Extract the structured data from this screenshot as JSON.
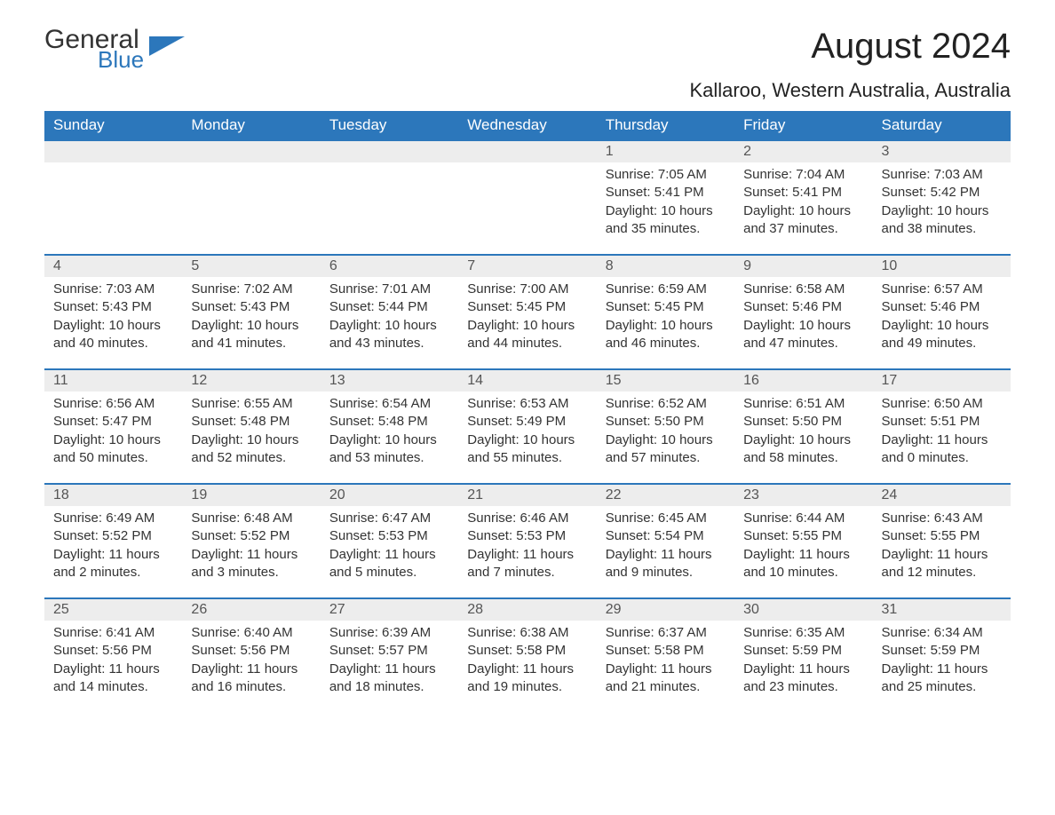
{
  "logo": {
    "text1": "General",
    "text2": "Blue",
    "shape_color": "#2c77bb"
  },
  "title": "August 2024",
  "location": "Kallaroo, Western Australia, Australia",
  "colors": {
    "header_bg": "#2c77bb",
    "header_text": "#ffffff",
    "daynum_bg": "#ededed",
    "border": "#2c77bb",
    "text": "#333333"
  },
  "weekdays": [
    "Sunday",
    "Monday",
    "Tuesday",
    "Wednesday",
    "Thursday",
    "Friday",
    "Saturday"
  ],
  "weeks": [
    [
      null,
      null,
      null,
      null,
      {
        "d": "1",
        "sr": "Sunrise: 7:05 AM",
        "ss": "Sunset: 5:41 PM",
        "dl1": "Daylight: 10 hours",
        "dl2": "and 35 minutes."
      },
      {
        "d": "2",
        "sr": "Sunrise: 7:04 AM",
        "ss": "Sunset: 5:41 PM",
        "dl1": "Daylight: 10 hours",
        "dl2": "and 37 minutes."
      },
      {
        "d": "3",
        "sr": "Sunrise: 7:03 AM",
        "ss": "Sunset: 5:42 PM",
        "dl1": "Daylight: 10 hours",
        "dl2": "and 38 minutes."
      }
    ],
    [
      {
        "d": "4",
        "sr": "Sunrise: 7:03 AM",
        "ss": "Sunset: 5:43 PM",
        "dl1": "Daylight: 10 hours",
        "dl2": "and 40 minutes."
      },
      {
        "d": "5",
        "sr": "Sunrise: 7:02 AM",
        "ss": "Sunset: 5:43 PM",
        "dl1": "Daylight: 10 hours",
        "dl2": "and 41 minutes."
      },
      {
        "d": "6",
        "sr": "Sunrise: 7:01 AM",
        "ss": "Sunset: 5:44 PM",
        "dl1": "Daylight: 10 hours",
        "dl2": "and 43 minutes."
      },
      {
        "d": "7",
        "sr": "Sunrise: 7:00 AM",
        "ss": "Sunset: 5:45 PM",
        "dl1": "Daylight: 10 hours",
        "dl2": "and 44 minutes."
      },
      {
        "d": "8",
        "sr": "Sunrise: 6:59 AM",
        "ss": "Sunset: 5:45 PM",
        "dl1": "Daylight: 10 hours",
        "dl2": "and 46 minutes."
      },
      {
        "d": "9",
        "sr": "Sunrise: 6:58 AM",
        "ss": "Sunset: 5:46 PM",
        "dl1": "Daylight: 10 hours",
        "dl2": "and 47 minutes."
      },
      {
        "d": "10",
        "sr": "Sunrise: 6:57 AM",
        "ss": "Sunset: 5:46 PM",
        "dl1": "Daylight: 10 hours",
        "dl2": "and 49 minutes."
      }
    ],
    [
      {
        "d": "11",
        "sr": "Sunrise: 6:56 AM",
        "ss": "Sunset: 5:47 PM",
        "dl1": "Daylight: 10 hours",
        "dl2": "and 50 minutes."
      },
      {
        "d": "12",
        "sr": "Sunrise: 6:55 AM",
        "ss": "Sunset: 5:48 PM",
        "dl1": "Daylight: 10 hours",
        "dl2": "and 52 minutes."
      },
      {
        "d": "13",
        "sr": "Sunrise: 6:54 AM",
        "ss": "Sunset: 5:48 PM",
        "dl1": "Daylight: 10 hours",
        "dl2": "and 53 minutes."
      },
      {
        "d": "14",
        "sr": "Sunrise: 6:53 AM",
        "ss": "Sunset: 5:49 PM",
        "dl1": "Daylight: 10 hours",
        "dl2": "and 55 minutes."
      },
      {
        "d": "15",
        "sr": "Sunrise: 6:52 AM",
        "ss": "Sunset: 5:50 PM",
        "dl1": "Daylight: 10 hours",
        "dl2": "and 57 minutes."
      },
      {
        "d": "16",
        "sr": "Sunrise: 6:51 AM",
        "ss": "Sunset: 5:50 PM",
        "dl1": "Daylight: 10 hours",
        "dl2": "and 58 minutes."
      },
      {
        "d": "17",
        "sr": "Sunrise: 6:50 AM",
        "ss": "Sunset: 5:51 PM",
        "dl1": "Daylight: 11 hours",
        "dl2": "and 0 minutes."
      }
    ],
    [
      {
        "d": "18",
        "sr": "Sunrise: 6:49 AM",
        "ss": "Sunset: 5:52 PM",
        "dl1": "Daylight: 11 hours",
        "dl2": "and 2 minutes."
      },
      {
        "d": "19",
        "sr": "Sunrise: 6:48 AM",
        "ss": "Sunset: 5:52 PM",
        "dl1": "Daylight: 11 hours",
        "dl2": "and 3 minutes."
      },
      {
        "d": "20",
        "sr": "Sunrise: 6:47 AM",
        "ss": "Sunset: 5:53 PM",
        "dl1": "Daylight: 11 hours",
        "dl2": "and 5 minutes."
      },
      {
        "d": "21",
        "sr": "Sunrise: 6:46 AM",
        "ss": "Sunset: 5:53 PM",
        "dl1": "Daylight: 11 hours",
        "dl2": "and 7 minutes."
      },
      {
        "d": "22",
        "sr": "Sunrise: 6:45 AM",
        "ss": "Sunset: 5:54 PM",
        "dl1": "Daylight: 11 hours",
        "dl2": "and 9 minutes."
      },
      {
        "d": "23",
        "sr": "Sunrise: 6:44 AM",
        "ss": "Sunset: 5:55 PM",
        "dl1": "Daylight: 11 hours",
        "dl2": "and 10 minutes."
      },
      {
        "d": "24",
        "sr": "Sunrise: 6:43 AM",
        "ss": "Sunset: 5:55 PM",
        "dl1": "Daylight: 11 hours",
        "dl2": "and 12 minutes."
      }
    ],
    [
      {
        "d": "25",
        "sr": "Sunrise: 6:41 AM",
        "ss": "Sunset: 5:56 PM",
        "dl1": "Daylight: 11 hours",
        "dl2": "and 14 minutes."
      },
      {
        "d": "26",
        "sr": "Sunrise: 6:40 AM",
        "ss": "Sunset: 5:56 PM",
        "dl1": "Daylight: 11 hours",
        "dl2": "and 16 minutes."
      },
      {
        "d": "27",
        "sr": "Sunrise: 6:39 AM",
        "ss": "Sunset: 5:57 PM",
        "dl1": "Daylight: 11 hours",
        "dl2": "and 18 minutes."
      },
      {
        "d": "28",
        "sr": "Sunrise: 6:38 AM",
        "ss": "Sunset: 5:58 PM",
        "dl1": "Daylight: 11 hours",
        "dl2": "and 19 minutes."
      },
      {
        "d": "29",
        "sr": "Sunrise: 6:37 AM",
        "ss": "Sunset: 5:58 PM",
        "dl1": "Daylight: 11 hours",
        "dl2": "and 21 minutes."
      },
      {
        "d": "30",
        "sr": "Sunrise: 6:35 AM",
        "ss": "Sunset: 5:59 PM",
        "dl1": "Daylight: 11 hours",
        "dl2": "and 23 minutes."
      },
      {
        "d": "31",
        "sr": "Sunrise: 6:34 AM",
        "ss": "Sunset: 5:59 PM",
        "dl1": "Daylight: 11 hours",
        "dl2": "and 25 minutes."
      }
    ]
  ]
}
